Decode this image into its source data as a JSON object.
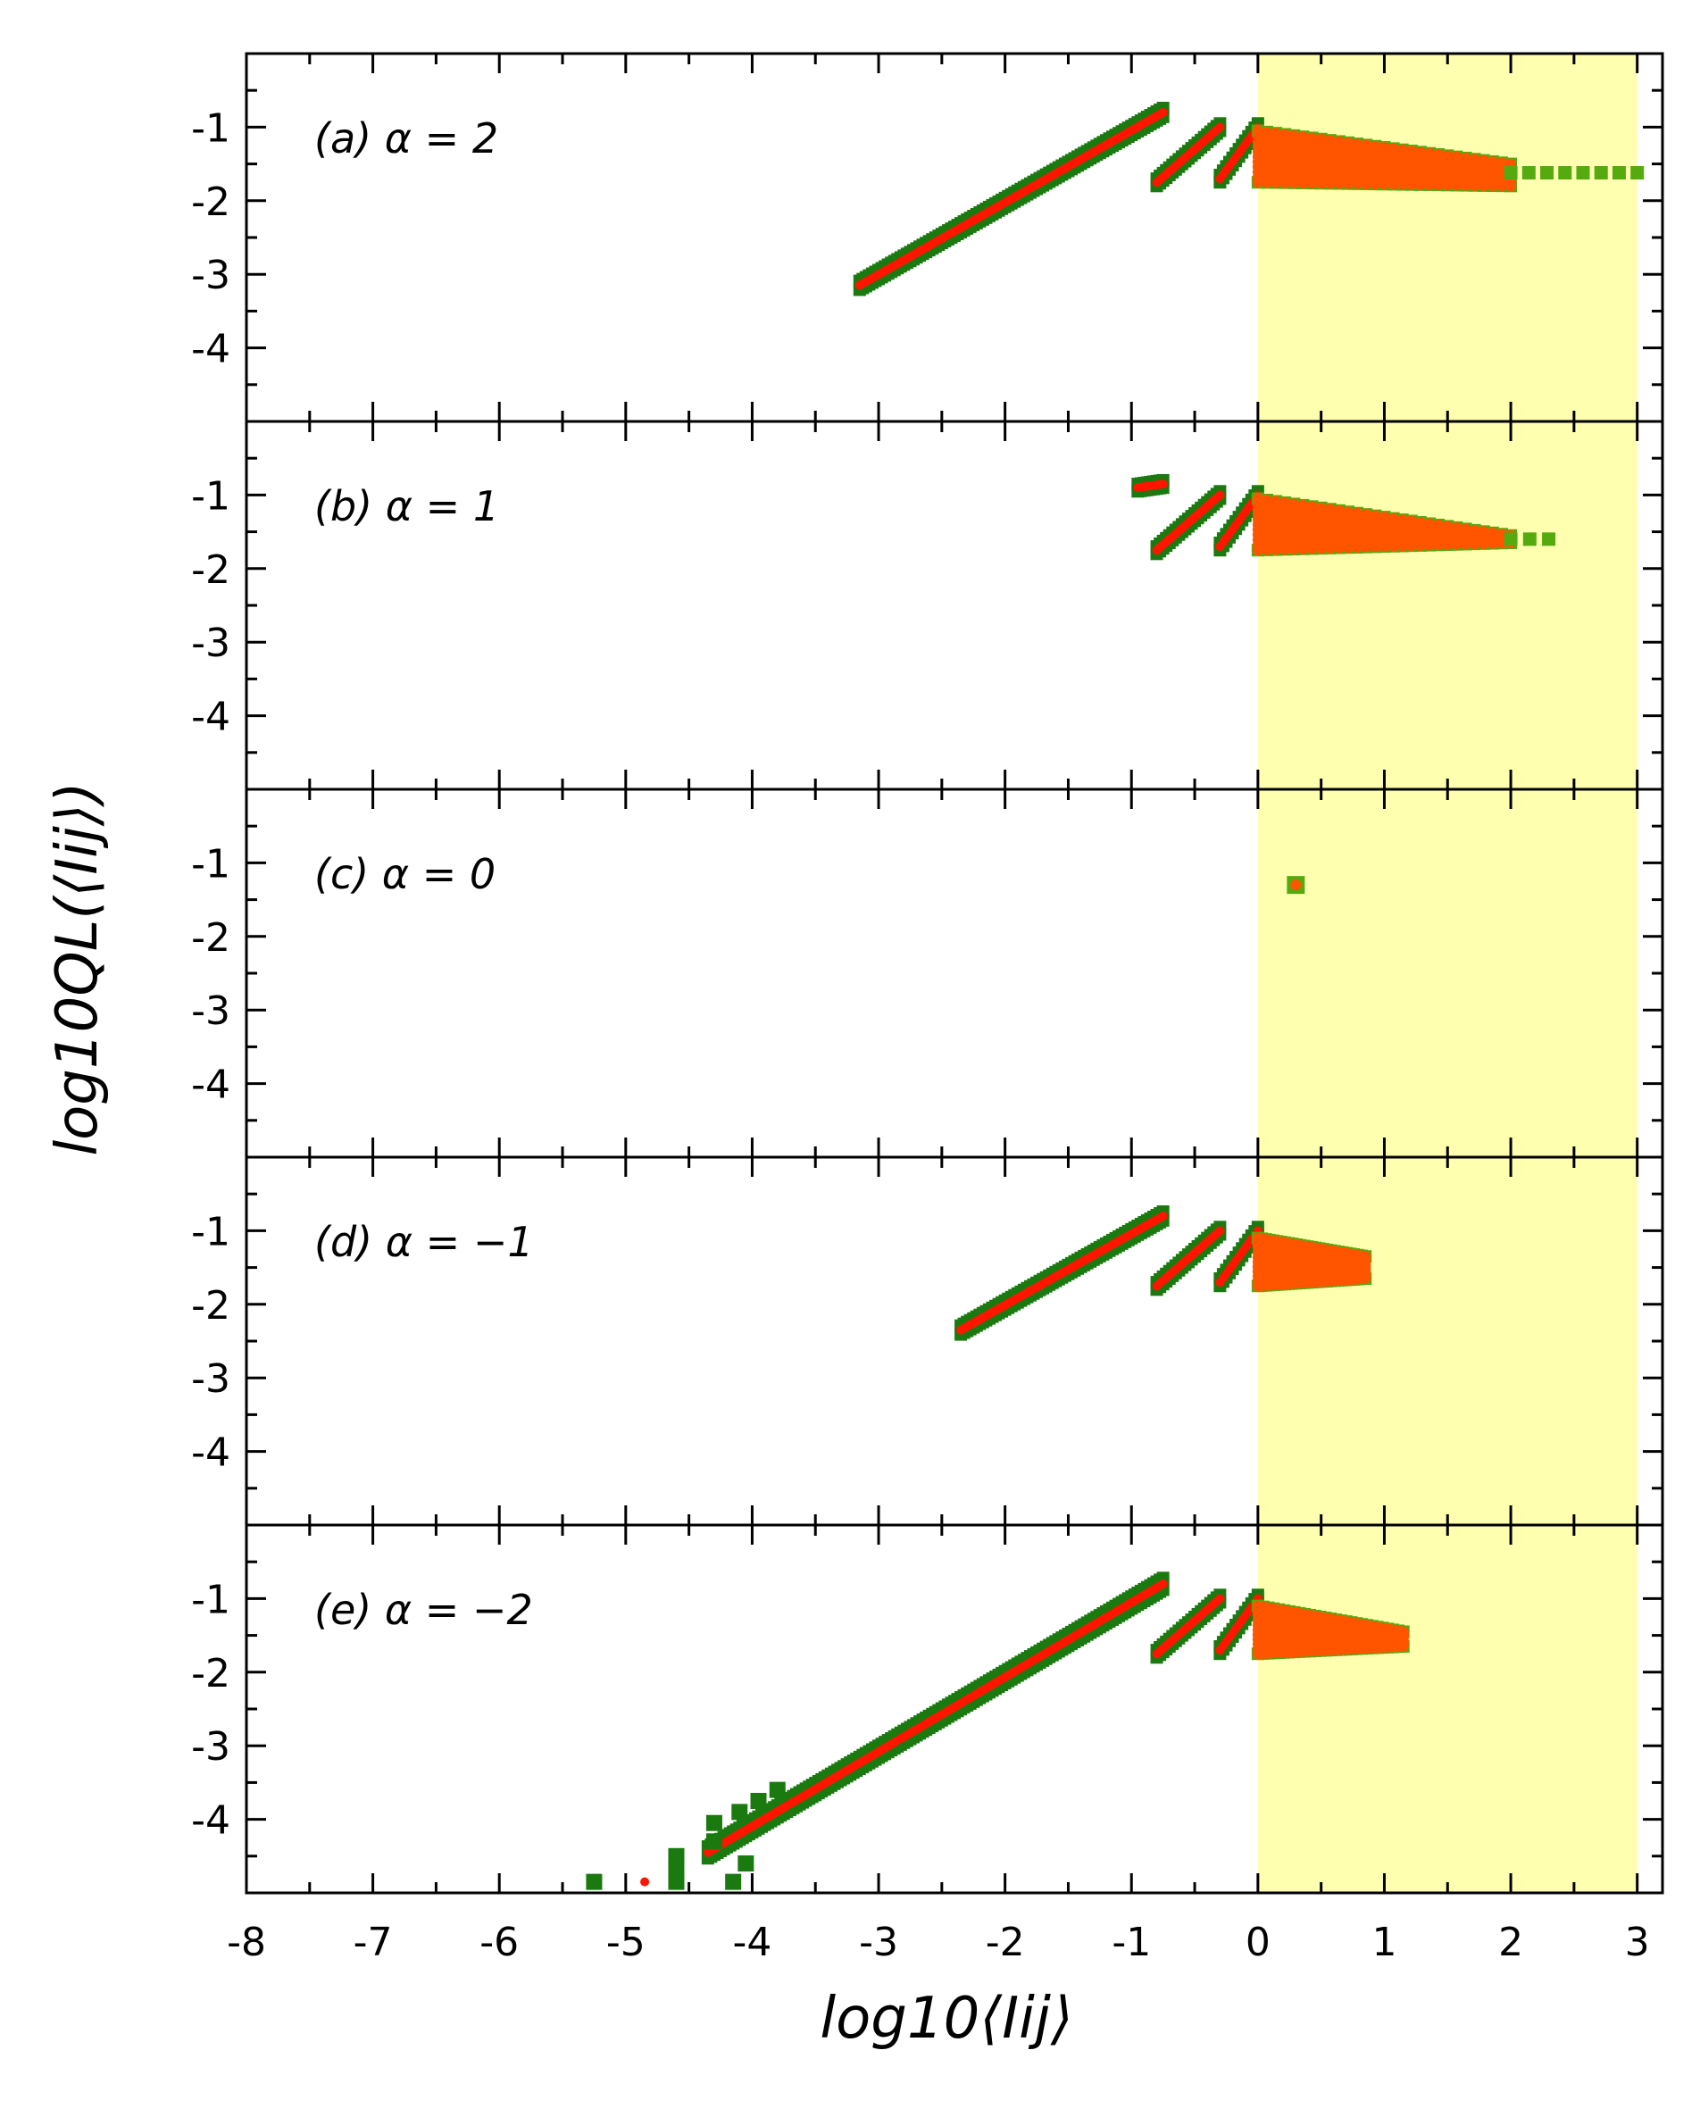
{
  "chart_data": {
    "type": "scatter",
    "layout": "5 stacked panels sharing x axis",
    "xlabel": "log10⟨Iij⟩",
    "ylabel": "log10QL(⟨Iij⟩)",
    "xlim": [
      -8,
      3.2
    ],
    "ylim": [
      -5,
      0
    ],
    "x_ticks": [
      "-8",
      "-7",
      "-6",
      "-5",
      "-4",
      "-3",
      "-2",
      "-1",
      "0",
      "1",
      "2",
      "3"
    ],
    "y_ticks": [
      "-1",
      "-2",
      "-3",
      "-4"
    ],
    "highlight_region": {
      "x": [
        0,
        3
      ],
      "color": "#ffffb0"
    },
    "colors": {
      "outer_marker": "#1a7a10",
      "bright_marker": "#55aa10",
      "inner_marker": "#ff1500",
      "fan_marker": "#ff5500"
    },
    "panels": [
      {
        "label": "(a) α = 2",
        "segments": [
          {
            "kind": "diag",
            "x": [
              -3.15,
              -0.75
            ],
            "y": [
              -3.15,
              -0.8
            ],
            "spread": 0.06
          },
          {
            "kind": "diag",
            "x": [
              -0.8,
              -0.3
            ],
            "y": [
              -1.75,
              -1.0
            ],
            "spread": 0.05
          },
          {
            "kind": "diag",
            "x": [
              -0.3,
              0.0
            ],
            "y": [
              -1.7,
              -1.0
            ],
            "spread": 0.05
          },
          {
            "kind": "fan",
            "x": [
              0.0,
              2.0
            ],
            "y_top": [
              -1.05,
              -1.5
            ],
            "y_bottom": [
              -1.75,
              -1.8
            ],
            "tip": [
              2.0,
              -1.8
            ]
          },
          {
            "kind": "tail",
            "x": [
              2.0,
              3.0
            ],
            "y": [
              -1.62,
              -1.62
            ]
          }
        ]
      },
      {
        "label": "(b) α = 1",
        "segments": [
          {
            "kind": "diag",
            "x": [
              -0.95,
              -0.75
            ],
            "y": [
              -0.9,
              -0.85
            ],
            "spread": 0.05
          },
          {
            "kind": "diag",
            "x": [
              -0.8,
              -0.3
            ],
            "y": [
              -1.75,
              -1.0
            ],
            "spread": 0.05
          },
          {
            "kind": "diag",
            "x": [
              -0.3,
              0.0
            ],
            "y": [
              -1.7,
              -1.0
            ],
            "spread": 0.05
          },
          {
            "kind": "fan",
            "x": [
              0.0,
              2.0
            ],
            "y_top": [
              -1.05,
              -1.55
            ],
            "y_bottom": [
              -1.75,
              -1.65
            ],
            "tip": [
              2.0,
              -1.62
            ]
          },
          {
            "kind": "tail",
            "x": [
              2.0,
              2.3
            ],
            "y": [
              -1.6,
              -1.6
            ]
          }
        ]
      },
      {
        "label": "(c) α = 0",
        "segments": [
          {
            "kind": "point",
            "x": 0.3,
            "y": -1.3
          }
        ]
      },
      {
        "label": "(d) α = −1",
        "segments": [
          {
            "kind": "diag",
            "x": [
              -2.35,
              -0.75
            ],
            "y": [
              -2.35,
              -0.8
            ],
            "spread": 0.06
          },
          {
            "kind": "diag",
            "x": [
              -0.8,
              -0.3
            ],
            "y": [
              -1.75,
              -1.0
            ],
            "spread": 0.05
          },
          {
            "kind": "diag",
            "x": [
              -0.3,
              0.0
            ],
            "y": [
              -1.7,
              -1.0
            ],
            "spread": 0.05
          },
          {
            "kind": "fan",
            "x": [
              0.0,
              0.85
            ],
            "y_top": [
              -1.1,
              -1.35
            ],
            "y_bottom": [
              -1.75,
              -1.65
            ],
            "tip": [
              0.85,
              -1.6
            ]
          }
        ]
      },
      {
        "label": "(e) α = −2",
        "segments": [
          {
            "kind": "diag",
            "x": [
              -4.35,
              -0.75
            ],
            "y": [
              -4.45,
              -0.8
            ],
            "spread": 0.08
          },
          {
            "kind": "diag",
            "x": [
              -0.8,
              -0.3
            ],
            "y": [
              -1.75,
              -1.0
            ],
            "spread": 0.05
          },
          {
            "kind": "diag",
            "x": [
              -0.3,
              0.0
            ],
            "y": [
              -1.7,
              -1.0
            ],
            "spread": 0.05
          },
          {
            "kind": "fan",
            "x": [
              0.0,
              1.15
            ],
            "y_top": [
              -1.1,
              -1.45
            ],
            "y_bottom": [
              -1.75,
              -1.65
            ],
            "tip": [
              1.15,
              -1.5
            ]
          },
          {
            "kind": "scatter",
            "points": [
              [
                -5.25,
                -4.85
              ],
              [
                -4.6,
                -4.5
              ],
              [
                -4.6,
                -4.65
              ],
              [
                -4.6,
                -4.85
              ],
              [
                -4.3,
                -4.05
              ],
              [
                -4.3,
                -4.3
              ],
              [
                -4.1,
                -3.9
              ],
              [
                -4.05,
                -4.6
              ],
              [
                -4.15,
                -4.85
              ],
              [
                -3.95,
                -3.75
              ],
              [
                -3.8,
                -3.6
              ]
            ]
          },
          {
            "kind": "red_dot",
            "x": -4.85,
            "y": -4.85
          }
        ]
      }
    ]
  }
}
